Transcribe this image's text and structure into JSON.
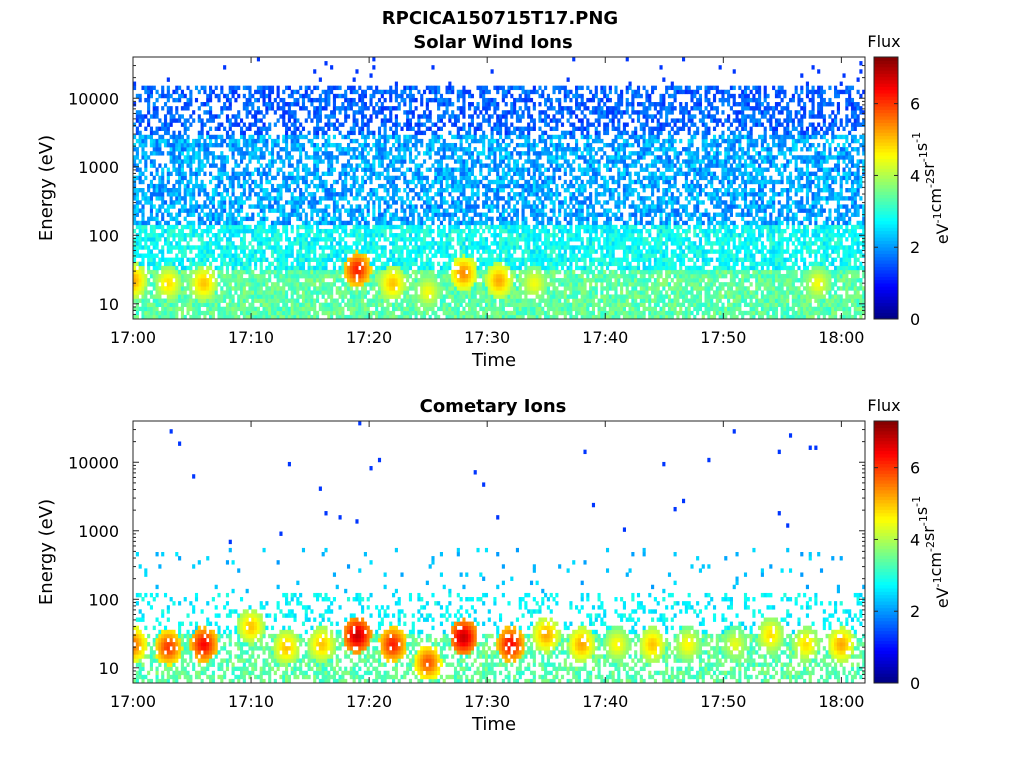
{
  "figure_title": "RPCICA150715T17.PNG",
  "chart_data": [
    {
      "type": "heatmap",
      "title": "Solar Wind Ions",
      "xlabel": "Time",
      "ylabel": "Energy (eV)",
      "x_range": [
        "17:00",
        "18:02"
      ],
      "y_scale": "log",
      "y_range": [
        6,
        40000
      ],
      "x_ticks": [
        "17:00",
        "17:10",
        "17:20",
        "17:30",
        "17:40",
        "17:50",
        "18:00"
      ],
      "y_ticks": [
        "10",
        "100",
        "1000",
        "10000"
      ],
      "colorbar": {
        "label": "Flux",
        "unit": "eV-1cm-2sr-1s-1",
        "range": [
          0,
          7.3
        ],
        "ticks": [
          "0",
          "2",
          "4",
          "6"
        ],
        "colormap": "jet"
      },
      "hotspots": [
        {
          "time": "17:00",
          "energy": 22,
          "flux": 5.2
        },
        {
          "time": "17:03",
          "energy": 20,
          "flux": 4.8
        },
        {
          "time": "17:06",
          "energy": 20,
          "flux": 5.0
        },
        {
          "time": "17:19",
          "energy": 32,
          "flux": 6.2
        },
        {
          "time": "17:22",
          "energy": 20,
          "flux": 5.0
        },
        {
          "time": "17:25",
          "energy": 15,
          "flux": 4.5
        },
        {
          "time": "17:28",
          "energy": 28,
          "flux": 5.4
        },
        {
          "time": "17:31",
          "energy": 22,
          "flux": 5.2
        },
        {
          "time": "17:34",
          "energy": 20,
          "flux": 4.5
        },
        {
          "time": "17:58",
          "energy": 20,
          "flux": 4.5
        }
      ],
      "density": 0.6
    },
    {
      "type": "heatmap",
      "title": "Cometary Ions",
      "xlabel": "Time",
      "ylabel": "Energy (eV)",
      "x_range": [
        "17:00",
        "18:02"
      ],
      "y_scale": "log",
      "y_range": [
        6,
        40000
      ],
      "x_ticks": [
        "17:00",
        "17:10",
        "17:20",
        "17:30",
        "17:40",
        "17:50",
        "18:00"
      ],
      "y_ticks": [
        "10",
        "100",
        "1000",
        "10000"
      ],
      "colorbar": {
        "label": "Flux",
        "unit": "eV-1cm-2sr-1s-1",
        "range": [
          0,
          7.3
        ],
        "ticks": [
          "0",
          "2",
          "4",
          "6"
        ],
        "colormap": "jet"
      },
      "hotspots": [
        {
          "time": "17:00",
          "energy": 22,
          "flux": 5.6
        },
        {
          "time": "17:03",
          "energy": 20,
          "flux": 6.0
        },
        {
          "time": "17:06",
          "energy": 22,
          "flux": 6.4
        },
        {
          "time": "17:10",
          "energy": 40,
          "flux": 5.0
        },
        {
          "time": "17:13",
          "energy": 20,
          "flux": 5.0
        },
        {
          "time": "17:16",
          "energy": 22,
          "flux": 5.0
        },
        {
          "time": "17:19",
          "energy": 30,
          "flux": 6.8
        },
        {
          "time": "17:22",
          "energy": 22,
          "flux": 6.2
        },
        {
          "time": "17:25",
          "energy": 12,
          "flux": 5.8
        },
        {
          "time": "17:28",
          "energy": 28,
          "flux": 6.8
        },
        {
          "time": "17:32",
          "energy": 22,
          "flux": 6.4
        },
        {
          "time": "17:35",
          "energy": 30,
          "flux": 5.2
        },
        {
          "time": "17:38",
          "energy": 22,
          "flux": 5.2
        },
        {
          "time": "17:41",
          "energy": 22,
          "flux": 4.6
        },
        {
          "time": "17:44",
          "energy": 22,
          "flux": 5.0
        },
        {
          "time": "17:47",
          "energy": 22,
          "flux": 4.6
        },
        {
          "time": "17:51",
          "energy": 22,
          "flux": 4.4
        },
        {
          "time": "17:54",
          "energy": 30,
          "flux": 4.8
        },
        {
          "time": "17:57",
          "energy": 22,
          "flux": 4.8
        },
        {
          "time": "18:00",
          "energy": 22,
          "flux": 5.2
        }
      ],
      "density": 0.3
    }
  ]
}
